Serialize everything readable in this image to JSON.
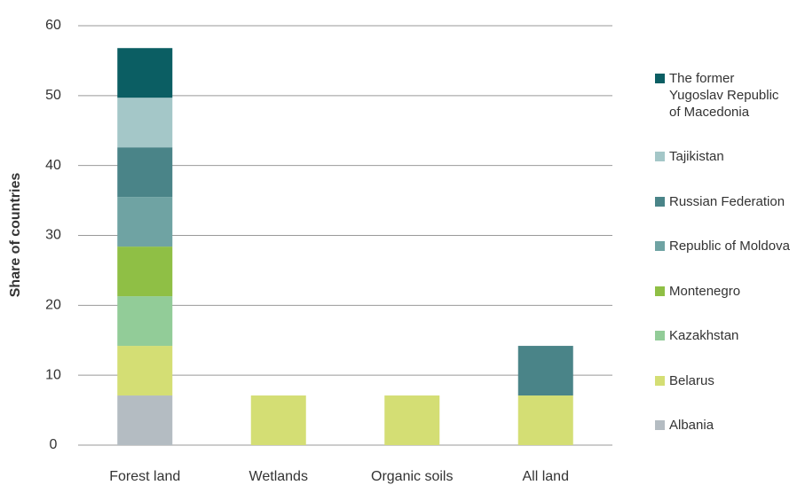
{
  "chart_data": {
    "type": "stacked_bar",
    "y_label": "Share of countries",
    "categories": [
      "Forest land",
      "Wetlands",
      "Organic soils",
      "All land"
    ],
    "series": [
      {
        "name": "Albania",
        "color": "#b4bcc2",
        "values": [
          7.1,
          0,
          0,
          0
        ]
      },
      {
        "name": "Belarus",
        "color": "#d4de74",
        "values": [
          7.1,
          7.1,
          7.1,
          7.1
        ]
      },
      {
        "name": "Kazakhstan",
        "color": "#92cc98",
        "values": [
          7.1,
          0,
          0,
          0
        ]
      },
      {
        "name": "Montenegro",
        "color": "#8fbf45",
        "values": [
          7.1,
          0,
          0,
          0
        ]
      },
      {
        "name": "Republic of Moldova",
        "color": "#6fa3a3",
        "values": [
          7.1,
          0,
          0,
          0
        ]
      },
      {
        "name": "Russian Federation",
        "color": "#4a8488",
        "values": [
          7.1,
          0,
          0,
          7.1
        ]
      },
      {
        "name": "Tajikistan",
        "color": "#a4c7c8",
        "values": [
          7.1,
          0,
          0,
          0
        ]
      },
      {
        "name": "The former Yugoslav Republic of Macedonia",
        "color": "#0b5e63",
        "values": [
          7.1,
          0,
          0,
          0
        ]
      }
    ],
    "ylim": [
      0,
      60
    ],
    "yticks": [
      0,
      10,
      20,
      30,
      40,
      50,
      60
    ],
    "grid": true
  }
}
